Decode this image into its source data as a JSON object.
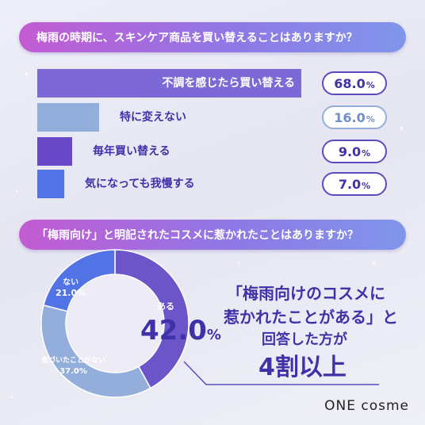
{
  "q1": {
    "question": "梅雨の時期に、スキンケア商品を買い替えることはありますか？",
    "items": [
      {
        "label": "不調を感じたら買い替える",
        "value": "68.0",
        "color": "#7c69d6"
      },
      {
        "label": "特に変えない",
        "value": "16.0",
        "color": "#93aedb"
      },
      {
        "label": "毎年買い替える",
        "value": "9.0",
        "color": "#6a49c9"
      },
      {
        "label": "気になっても我慢する",
        "value": "7.0",
        "color": "#5273e6"
      }
    ],
    "unit": "%"
  },
  "q2": {
    "question": "「梅雨向け」と明記されたコスメに惹かれたことはありますか？",
    "segments": [
      {
        "label": "ある",
        "value": "42.0",
        "color": "#6b55c9"
      },
      {
        "label": "気づいたことがない",
        "value": "37.0",
        "color": "#93aedb"
      },
      {
        "label": "ない",
        "value": "21.0",
        "color": "#5273e6"
      }
    ],
    "highlight_value": "42.0",
    "highlight_unit": "%",
    "callout": {
      "line1": "「梅雨向けのコスメに",
      "line2": "惹かれたことがある」と",
      "line3": "回答した方が",
      "line4": "4割以上"
    }
  },
  "brand": "ONE cosme",
  "chart_data": [
    {
      "type": "bar",
      "title": "梅雨の時期に、スキンケア商品を買い替えることはありますか？",
      "categories": [
        "不調を感じたら買い替える",
        "特に変えない",
        "毎年買い替える",
        "気になっても我慢する"
      ],
      "values": [
        68.0,
        16.0,
        9.0,
        7.0
      ],
      "unit": "%"
    },
    {
      "type": "pie",
      "title": "「梅雨向け」と明記されたコスメに惹かれたことはありますか？",
      "categories": [
        "ある",
        "気づいたことがない",
        "ない"
      ],
      "values": [
        42.0,
        37.0,
        21.0
      ],
      "unit": "%"
    }
  ]
}
